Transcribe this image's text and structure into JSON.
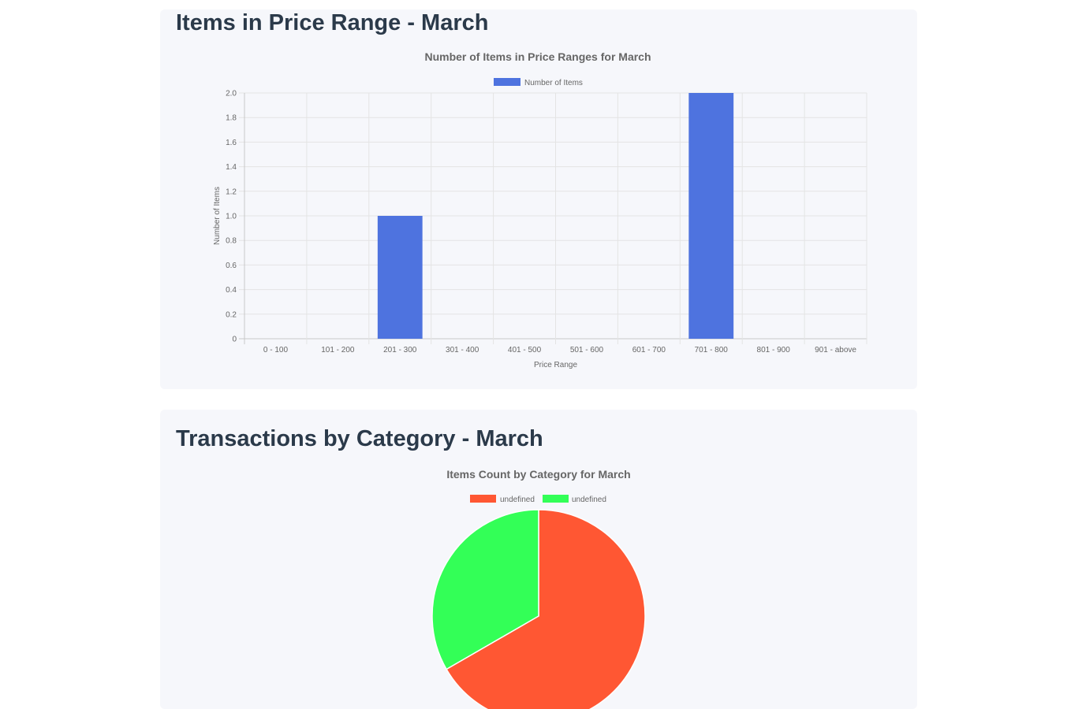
{
  "sections": [
    {
      "heading": "Items in Price Range - March",
      "chart_data": {
        "type": "bar",
        "title": "Number of Items in Price Ranges for March",
        "xlabel": "Price Range",
        "ylabel": "Number of Items",
        "legend_position": "top",
        "grid": true,
        "ylim": [
          0,
          2
        ],
        "yticks": [
          "2.0",
          "1.8",
          "1.6",
          "1.4",
          "1.2",
          "1.0",
          "0.8",
          "0.6",
          "0.4",
          "0.2",
          "0"
        ],
        "categories": [
          "0 - 100",
          "101 - 200",
          "201 - 300",
          "301 - 400",
          "401 - 500",
          "501 - 600",
          "601 - 700",
          "701 - 800",
          "801 - 900",
          "901 - above"
        ],
        "series": [
          {
            "name": "Number of Items",
            "color": "#4e73df",
            "values": [
              0,
              0,
              1,
              0,
              0,
              0,
              0,
              2,
              0,
              0
            ]
          }
        ]
      }
    },
    {
      "heading": "Transactions by Category - March",
      "chart_data": {
        "type": "pie",
        "title": "Items Count by Category for March",
        "legend_position": "top",
        "labels": [
          "undefined",
          "undefined"
        ],
        "values": [
          2,
          1
        ],
        "colors": [
          "#ff5733",
          "#33ff57"
        ]
      }
    }
  ]
}
